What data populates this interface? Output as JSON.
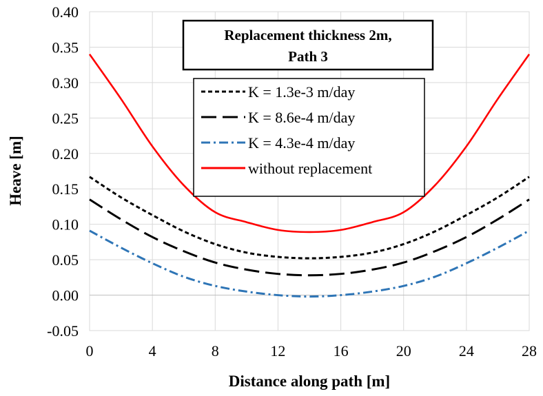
{
  "chart_data": {
    "type": "line",
    "title_lines": [
      "Replacement thickness 2m,",
      "Path 3"
    ],
    "xlabel": "Distance along path [m]",
    "ylabel": "Heave [m]",
    "xlim": [
      0,
      28
    ],
    "ylim": [
      -0.05,
      0.4
    ],
    "x_ticks": [
      "0",
      "4",
      "8",
      "12",
      "16",
      "20",
      "24",
      "28"
    ],
    "y_ticks": [
      "-0.05",
      "0.00",
      "0.05",
      "0.10",
      "0.15",
      "0.20",
      "0.25",
      "0.30",
      "0.35",
      "0.40"
    ],
    "grid": true,
    "legend_position": "top-right",
    "x": [
      0,
      2,
      4,
      6,
      8,
      10,
      12,
      14,
      16,
      18,
      20,
      22,
      24,
      26,
      28
    ],
    "series": [
      {
        "name": "K = 1.3e-3 m/day",
        "color": "#000000",
        "dash": "short-dash",
        "values": [
          0.167,
          0.138,
          0.113,
          0.09,
          0.072,
          0.06,
          0.054,
          0.052,
          0.054,
          0.06,
          0.072,
          0.09,
          0.113,
          0.138,
          0.167
        ]
      },
      {
        "name": "K = 8.6e-4 m/day",
        "color": "#000000",
        "dash": "long-dash",
        "values": [
          0.135,
          0.107,
          0.082,
          0.062,
          0.046,
          0.036,
          0.03,
          0.028,
          0.03,
          0.036,
          0.046,
          0.062,
          0.082,
          0.107,
          0.135
        ]
      },
      {
        "name": "K = 4.3e-4 m/day",
        "color": "#2e75b6",
        "dash": "dash-dot",
        "values": [
          0.091,
          0.067,
          0.045,
          0.026,
          0.013,
          0.005,
          0.0,
          -0.002,
          0.0,
          0.005,
          0.013,
          0.026,
          0.045,
          0.067,
          0.091
        ]
      },
      {
        "name": "without replacement",
        "color": "#ff0000",
        "dash": "solid",
        "values": [
          0.34,
          0.277,
          0.21,
          0.155,
          0.117,
          0.103,
          0.092,
          0.089,
          0.092,
          0.103,
          0.117,
          0.155,
          0.21,
          0.277,
          0.34
        ]
      }
    ]
  }
}
